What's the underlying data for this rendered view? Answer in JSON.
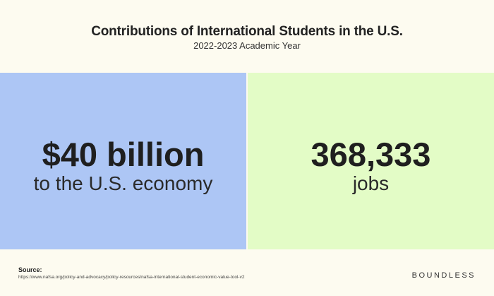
{
  "header": {
    "title": "Contributions of International Students in the U.S.",
    "subtitle": "2022-2023 Academic Year"
  },
  "panels": [
    {
      "figure": "$40 billion",
      "caption": "to the U.S. economy"
    },
    {
      "figure": "368,333",
      "caption": "jobs"
    }
  ],
  "footer": {
    "source_label": "Source:",
    "source_url": "https://www.nafsa.org/policy-and-advocacy/policy-resources/nafsa-international-student-economic-value-tool-v2",
    "brand": "BOUNDLESS"
  }
}
